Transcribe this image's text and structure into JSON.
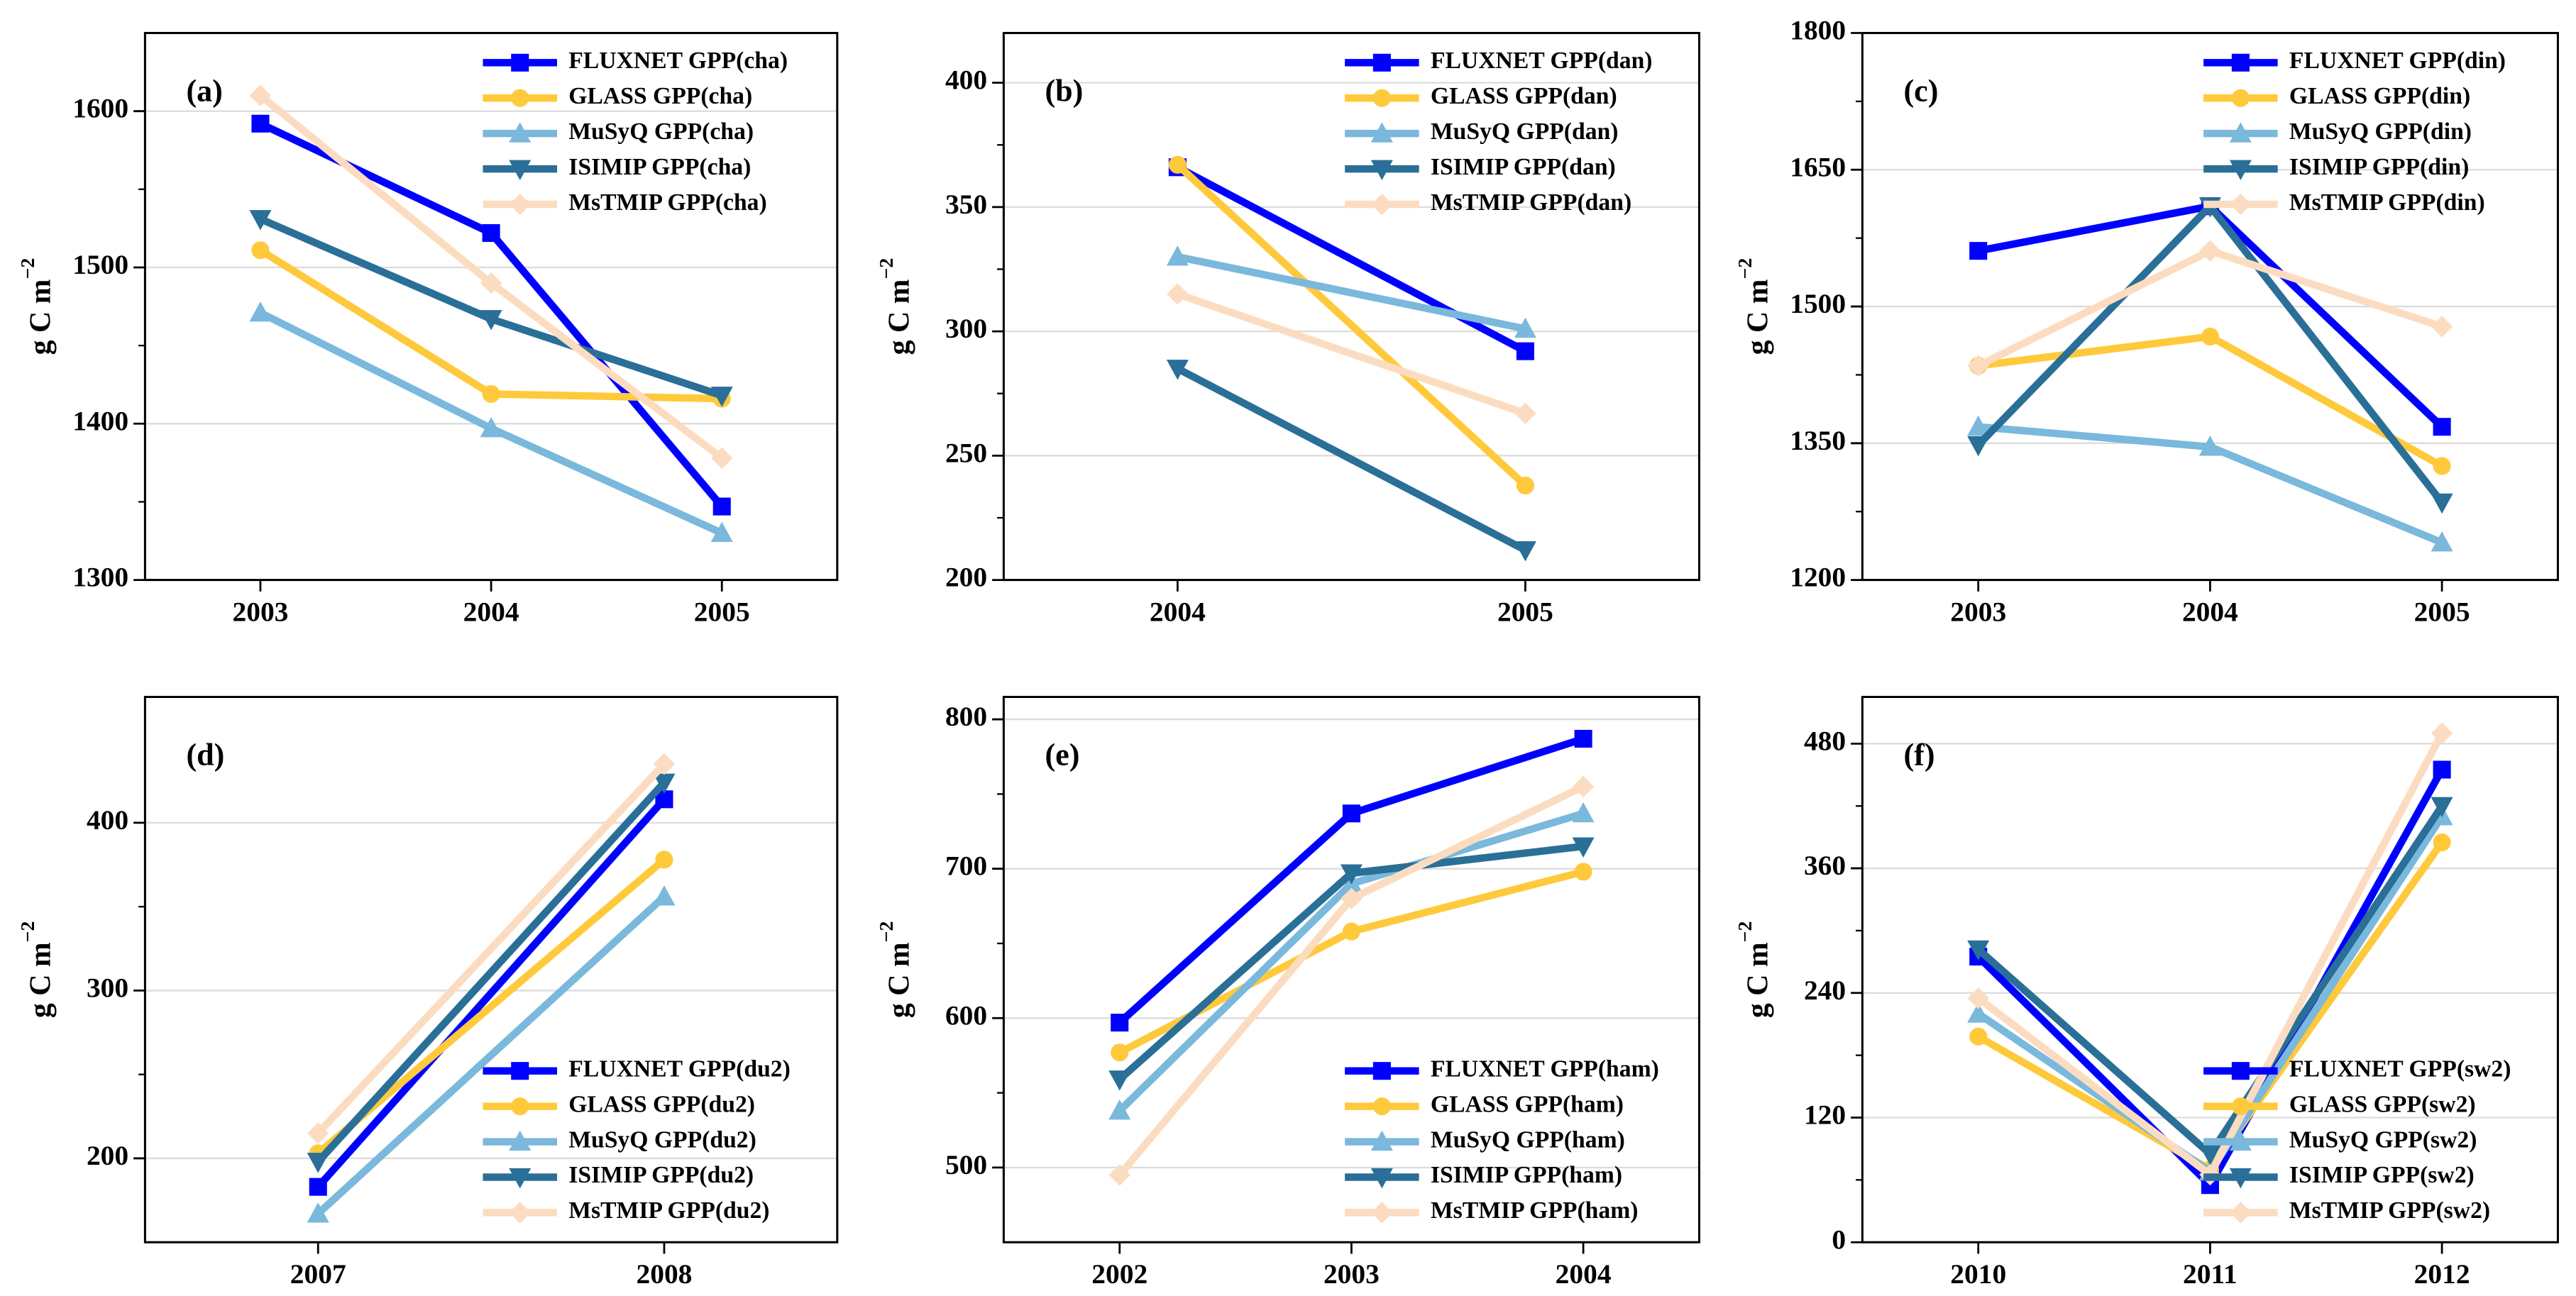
{
  "chart_data": [
    {
      "type": "line",
      "annotation": "(a)",
      "y_label": {
        "base": "g C m",
        "exponent": "−2"
      },
      "categories": [
        "2003",
        "2004",
        "2005"
      ],
      "ylim": [
        1300,
        1650
      ],
      "yticks": [
        1300,
        1400,
        1500,
        1600
      ],
      "grid": true,
      "legend": "upper right",
      "series": [
        {
          "name": "FLUXNET GPP(cha)",
          "color": "#0000ff",
          "marker": "square",
          "values": [
            1592,
            1522,
            1347
          ]
        },
        {
          "name": "GLASS GPP(cha)",
          "color": "#ffc93c",
          "marker": "circle",
          "values": [
            1511,
            1419,
            1416
          ]
        },
        {
          "name": "MuSyQ GPP(cha)",
          "color": "#7ab8dc",
          "marker": "triangle-up",
          "values": [
            1471,
            1397,
            1330
          ]
        },
        {
          "name": "ISIMIP GPP(cha)",
          "color": "#2a6f97",
          "marker": "triangle-down",
          "values": [
            1531,
            1467,
            1418
          ]
        },
        {
          "name": "MsTMIP GPP(cha)",
          "color": "#fcdcc0",
          "marker": "diamond",
          "values": [
            1610,
            1490,
            1378
          ]
        }
      ]
    },
    {
      "type": "line",
      "annotation": "(b)",
      "y_label": {
        "base": "g C m",
        "exponent": "−2"
      },
      "categories": [
        "2004",
        "2005"
      ],
      "ylim": [
        200,
        420
      ],
      "yticks": [
        200,
        250,
        300,
        350,
        400
      ],
      "grid": true,
      "legend": "upper right",
      "series": [
        {
          "name": "FLUXNET GPP(dan)",
          "color": "#0000ff",
          "marker": "square",
          "values": [
            366,
            292
          ]
        },
        {
          "name": "GLASS GPP(dan)",
          "color": "#ffc93c",
          "marker": "circle",
          "values": [
            367,
            238
          ]
        },
        {
          "name": "MuSyQ GPP(dan)",
          "color": "#7ab8dc",
          "marker": "triangle-up",
          "values": [
            330,
            301
          ]
        },
        {
          "name": "ISIMIP GPP(dan)",
          "color": "#2a6f97",
          "marker": "triangle-down",
          "values": [
            285,
            212
          ]
        },
        {
          "name": "MsTMIP GPP(dan)",
          "color": "#fcdcc0",
          "marker": "diamond",
          "values": [
            315,
            267
          ]
        }
      ]
    },
    {
      "type": "line",
      "annotation": "(c)",
      "y_label": {
        "base": "g C m",
        "exponent": "−2"
      },
      "categories": [
        "2003",
        "2004",
        "2005"
      ],
      "ylim": [
        1200,
        1800
      ],
      "yticks": [
        1200,
        1350,
        1500,
        1650,
        1800
      ],
      "grid": true,
      "legend": "upper right",
      "series": [
        {
          "name": "FLUXNET GPP(din)",
          "color": "#0000ff",
          "marker": "square",
          "values": [
            1561,
            1610,
            1368
          ]
        },
        {
          "name": "GLASS GPP(din)",
          "color": "#ffc93c",
          "marker": "circle",
          "values": [
            1435,
            1467,
            1325
          ]
        },
        {
          "name": "MuSyQ GPP(din)",
          "color": "#7ab8dc",
          "marker": "triangle-up",
          "values": [
            1368,
            1346,
            1241
          ]
        },
        {
          "name": "ISIMIP GPP(din)",
          "color": "#2a6f97",
          "marker": "triangle-down",
          "values": [
            1348,
            1610,
            1285
          ]
        },
        {
          "name": "MsTMIP GPP(din)",
          "color": "#fcdcc0",
          "marker": "diamond",
          "values": [
            1435,
            1561,
            1478
          ]
        }
      ]
    },
    {
      "type": "line",
      "annotation": "(d)",
      "y_label": {
        "base": "g C m",
        "exponent": "−2"
      },
      "categories": [
        "2007",
        "2008"
      ],
      "ylim": [
        150,
        475
      ],
      "yticks": [
        200,
        300,
        400
      ],
      "grid": true,
      "legend": "lower right",
      "series": [
        {
          "name": "FLUXNET GPP(du2)",
          "color": "#0000ff",
          "marker": "square",
          "values": [
            183,
            414
          ]
        },
        {
          "name": "GLASS GPP(du2)",
          "color": "#ffc93c",
          "marker": "circle",
          "values": [
            203,
            378
          ]
        },
        {
          "name": "MuSyQ GPP(du2)",
          "color": "#7ab8dc",
          "marker": "triangle-up",
          "values": [
            167,
            356
          ]
        },
        {
          "name": "ISIMIP GPP(du2)",
          "color": "#2a6f97",
          "marker": "triangle-down",
          "values": [
            198,
            424
          ]
        },
        {
          "name": "MsTMIP GPP(du2)",
          "color": "#fcdcc0",
          "marker": "diamond",
          "values": [
            215,
            435
          ]
        }
      ]
    },
    {
      "type": "line",
      "annotation": "(e)",
      "y_label": {
        "base": "g C m",
        "exponent": "−2"
      },
      "categories": [
        "2002",
        "2003",
        "2004"
      ],
      "ylim": [
        450,
        815
      ],
      "yticks": [
        500,
        600,
        700,
        800
      ],
      "grid": true,
      "legend": "lower right",
      "series": [
        {
          "name": "FLUXNET GPP(ham)",
          "color": "#0000ff",
          "marker": "square",
          "values": [
            597,
            737,
            787
          ]
        },
        {
          "name": "GLASS GPP(ham)",
          "color": "#ffc93c",
          "marker": "circle",
          "values": [
            577,
            658,
            698
          ]
        },
        {
          "name": "MuSyQ GPP(ham)",
          "color": "#7ab8dc",
          "marker": "triangle-up",
          "values": [
            538,
            690,
            737
          ]
        },
        {
          "name": "ISIMIP GPP(ham)",
          "color": "#2a6f97",
          "marker": "triangle-down",
          "values": [
            559,
            697,
            715
          ]
        },
        {
          "name": "MsTMIP GPP(ham)",
          "color": "#fcdcc0",
          "marker": "diamond",
          "values": [
            495,
            680,
            755
          ]
        }
      ]
    },
    {
      "type": "line",
      "annotation": "(f)",
      "y_label": {
        "base": "g C m",
        "exponent": "−2"
      },
      "categories": [
        "2010",
        "2011",
        "2012"
      ],
      "ylim": [
        0,
        525
      ],
      "yticks": [
        0,
        120,
        240,
        360,
        480
      ],
      "grid": true,
      "legend": "lower right",
      "series": [
        {
          "name": "FLUXNET GPP(sw2)",
          "color": "#0000ff",
          "marker": "square",
          "values": [
            275,
            55,
            455
          ]
        },
        {
          "name": "GLASS GPP(sw2)",
          "color": "#ffc93c",
          "marker": "circle",
          "values": [
            198,
            70,
            385
          ]
        },
        {
          "name": "MuSyQ GPP(sw2)",
          "color": "#7ab8dc",
          "marker": "triangle-up",
          "values": [
            220,
            68,
            410
          ]
        },
        {
          "name": "ISIMIP GPP(sw2)",
          "color": "#2a6f97",
          "marker": "triangle-down",
          "values": [
            282,
            85,
            420
          ]
        },
        {
          "name": "MsTMIP GPP(sw2)",
          "color": "#fcdcc0",
          "marker": "diamond",
          "values": [
            235,
            65,
            490
          ]
        }
      ]
    }
  ]
}
